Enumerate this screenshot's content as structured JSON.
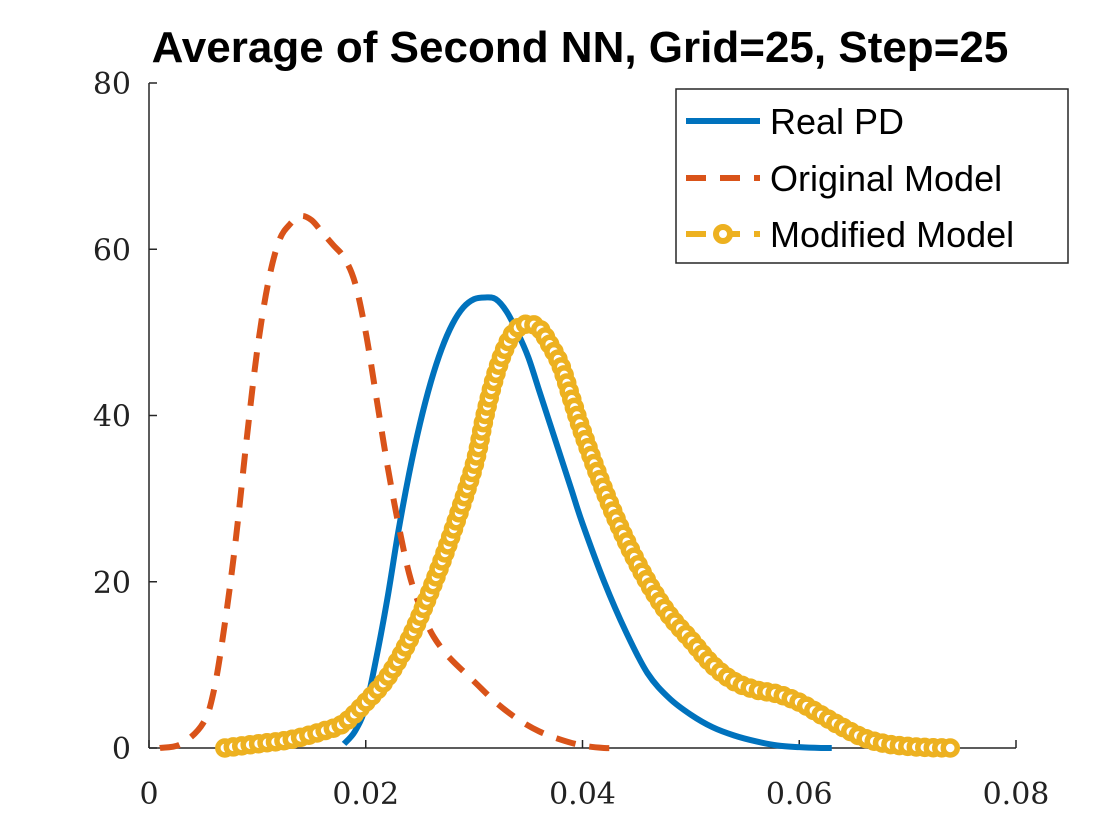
{
  "chart_data": {
    "type": "line",
    "title": "Average of Second NN, Grid=25, Step=25",
    "xlabel": "",
    "ylabel": "",
    "xlim": [
      0,
      0.08
    ],
    "ylim": [
      0,
      80
    ],
    "x_ticks": [
      "0",
      "0.02",
      "0.04",
      "0.06",
      "0.08"
    ],
    "y_ticks": [
      "0",
      "20",
      "40",
      "60",
      "80"
    ],
    "x_tick_values": [
      0,
      0.02,
      0.04,
      0.06,
      0.08
    ],
    "y_tick_values": [
      0,
      20,
      40,
      60,
      80
    ],
    "grid": false,
    "legend_position": "top-right",
    "series": [
      {
        "name": "Real PD",
        "color": "#0072BD",
        "style": "solid",
        "x": [
          0.018,
          0.019,
          0.02,
          0.021,
          0.022,
          0.023,
          0.024,
          0.025,
          0.026,
          0.027,
          0.028,
          0.029,
          0.03,
          0.031,
          0.032,
          0.033,
          0.034,
          0.035,
          0.036,
          0.037,
          0.038,
          0.039,
          0.04,
          0.042,
          0.044,
          0.046,
          0.048,
          0.05,
          0.052,
          0.054,
          0.056,
          0.058,
          0.06,
          0.062,
          0.063
        ],
        "values": [
          0.5,
          2,
          5,
          11,
          18,
          26,
          33,
          39,
          44,
          48,
          51,
          53,
          54,
          54.2,
          54,
          52.5,
          50,
          47,
          43,
          39,
          35,
          31,
          27,
          20,
          14,
          9,
          6,
          4,
          2.5,
          1.5,
          0.8,
          0.3,
          0.1,
          0,
          0
        ]
      },
      {
        "name": "Original Model",
        "color": "#D95319",
        "style": "dashed",
        "x": [
          0.001,
          0.003,
          0.005,
          0.006,
          0.007,
          0.008,
          0.009,
          0.01,
          0.011,
          0.012,
          0.013,
          0.014,
          0.015,
          0.016,
          0.017,
          0.018,
          0.019,
          0.02,
          0.021,
          0.022,
          0.023,
          0.024,
          0.025,
          0.026,
          0.027,
          0.028,
          0.03,
          0.032,
          0.034,
          0.036,
          0.038,
          0.04,
          0.042,
          0.043
        ],
        "values": [
          0,
          0.5,
          3,
          7,
          15,
          25,
          37,
          48,
          56,
          61,
          63,
          64,
          63.5,
          62,
          60.5,
          59,
          56,
          50,
          42,
          34,
          27,
          21,
          17,
          14,
          12,
          10.5,
          8,
          5.5,
          3.5,
          2,
          1,
          0.3,
          0,
          0
        ]
      },
      {
        "name": "Modified Model",
        "color": "#EDB120",
        "style": "dash-circle",
        "x": [
          0.007,
          0.01,
          0.013,
          0.016,
          0.018,
          0.02,
          0.022,
          0.024,
          0.026,
          0.028,
          0.03,
          0.031,
          0.032,
          0.033,
          0.034,
          0.035,
          0.036,
          0.037,
          0.038,
          0.039,
          0.04,
          0.042,
          0.044,
          0.046,
          0.048,
          0.05,
          0.052,
          0.054,
          0.056,
          0.058,
          0.06,
          0.062,
          0.064,
          0.066,
          0.068,
          0.07,
          0.072,
          0.074
        ],
        "values": [
          0,
          0.5,
          1,
          2,
          3,
          5.5,
          8.5,
          13,
          19,
          26,
          34,
          40,
          45,
          48.5,
          50.5,
          51,
          50.5,
          48.5,
          46,
          42,
          38,
          31,
          25,
          20,
          16,
          13,
          10,
          8,
          7,
          6.5,
          5.5,
          4,
          2.5,
          1.2,
          0.5,
          0.2,
          0.05,
          0
        ]
      }
    ]
  }
}
